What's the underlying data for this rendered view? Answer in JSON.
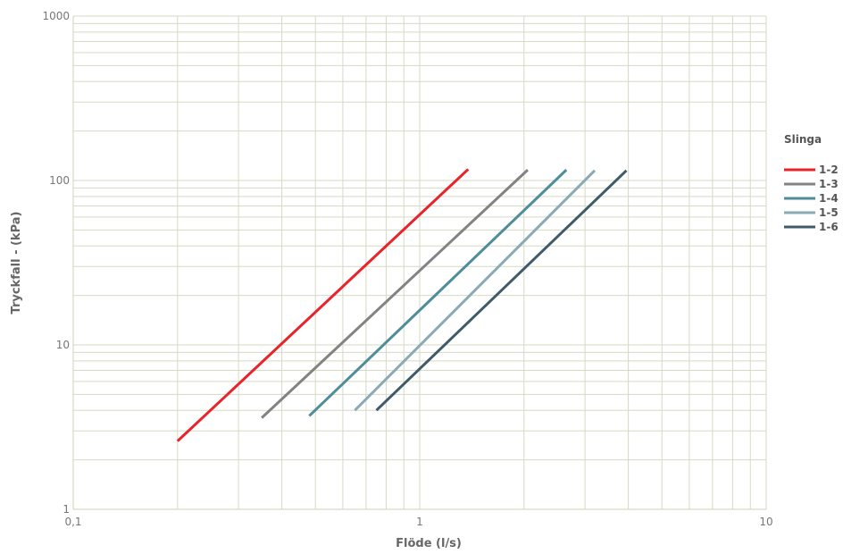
{
  "chart_data": {
    "type": "line",
    "xscale": "log",
    "yscale": "log",
    "xlabel": "Flöde  (l/s)",
    "ylabel": "Tryckfall - (kPa)",
    "xlim": [
      0.1,
      10
    ],
    "ylim": [
      1,
      1000
    ],
    "grid": true,
    "x_tick_labels": [
      "0,1",
      "1",
      "10"
    ],
    "y_tick_labels": [
      "1",
      "10",
      "100",
      "1000"
    ],
    "legend_title": "Slinga",
    "legend_position": "right",
    "colors": {
      "grid": "#d6d9c4",
      "axis_text": "#777777"
    },
    "series": [
      {
        "name": "1-2",
        "color": "#e8232a",
        "points": [
          [
            0.2,
            2.6
          ],
          [
            1.38,
            117
          ]
        ]
      },
      {
        "name": "1-3",
        "color": "#838383",
        "points": [
          [
            0.35,
            3.6
          ],
          [
            2.05,
            116
          ]
        ]
      },
      {
        "name": "1-4",
        "color": "#4e8d99",
        "points": [
          [
            0.48,
            3.7
          ],
          [
            2.65,
            116
          ]
        ]
      },
      {
        "name": "1-5",
        "color": "#89abb6",
        "points": [
          [
            0.65,
            4.0
          ],
          [
            3.2,
            115
          ]
        ]
      },
      {
        "name": "1-6",
        "color": "#3f5b69",
        "points": [
          [
            0.75,
            4.0
          ],
          [
            3.95,
            115
          ]
        ]
      }
    ]
  }
}
